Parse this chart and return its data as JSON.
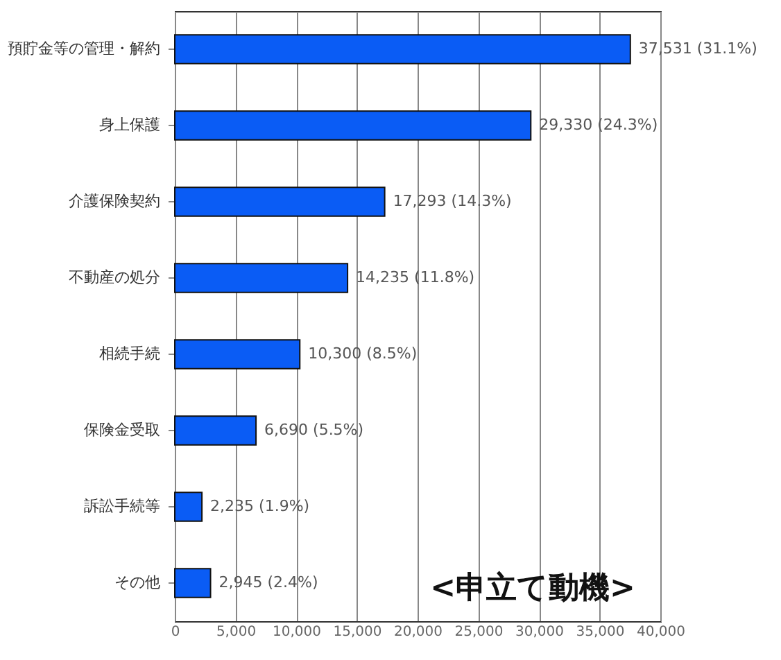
{
  "chart_data": {
    "type": "bar",
    "orientation": "horizontal",
    "title": "<申立て動機>",
    "categories": [
      "預貯金等の管理・解約",
      "身上保護",
      "介護保険契約",
      "不動産の処分",
      "相続手続",
      "保険金受取",
      "訴訟手続等",
      "その他"
    ],
    "values": [
      37531,
      29330,
      17293,
      14235,
      10300,
      6690,
      2235,
      2945
    ],
    "value_labels": [
      "37,531 (31.1%)",
      "29,330 (24.3%)",
      "17,293 (14.3%)",
      "14,235 (11.8%)",
      "10,300 (8.5%)",
      "6,690 (5.5%)",
      "2,235 (1.9%)",
      "2,945 (2.4%)"
    ],
    "color": "#0a5cf5",
    "xlim": [
      0,
      40000
    ],
    "xticks": [
      {
        "value": 0,
        "label": "0"
      },
      {
        "value": 5000,
        "label": "5,000"
      },
      {
        "value": 10000,
        "label": "10,000"
      },
      {
        "value": 15000,
        "label": "15,000"
      },
      {
        "value": 20000,
        "label": "20,000"
      },
      {
        "value": 25000,
        "label": "25,000"
      },
      {
        "value": 30000,
        "label": "30,000"
      },
      {
        "value": 35000,
        "label": "35,000"
      },
      {
        "value": 40000,
        "label": "40,000"
      }
    ],
    "grid": "x"
  }
}
